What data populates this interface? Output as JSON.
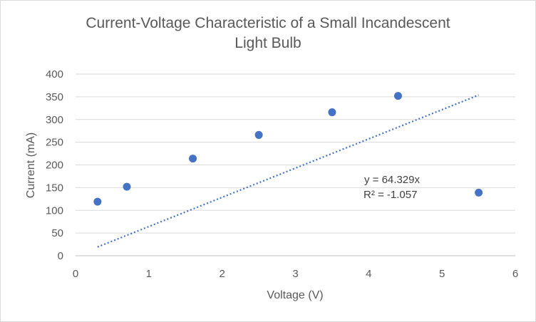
{
  "chart_data": {
    "type": "scatter",
    "title_line1": "Current-Voltage Characteristic of a Small Incandescent",
    "title_line2": "Light Bulb",
    "xlabel": "Voltage (V)",
    "ylabel": "Current (mA)",
    "xlim": [
      0,
      6
    ],
    "ylim": [
      0,
      400
    ],
    "x_ticks": [
      "0",
      "1",
      "2",
      "3",
      "4",
      "5",
      "6"
    ],
    "y_ticks": [
      "0",
      "50",
      "100",
      "150",
      "200",
      "250",
      "300",
      "350",
      "400"
    ],
    "grid": "horizontal",
    "series": [
      {
        "marker_color": "#4472c4",
        "points": [
          {
            "x": 0.3,
            "y": 119
          },
          {
            "x": 0.7,
            "y": 152
          },
          {
            "x": 1.6,
            "y": 214
          },
          {
            "x": 2.5,
            "y": 266
          },
          {
            "x": 3.5,
            "y": 316
          },
          {
            "x": 4.4,
            "y": 352
          },
          {
            "x": 5.5,
            "y": 139
          }
        ]
      }
    ],
    "trendline": {
      "type": "linear-through-origin",
      "slope": 64.329,
      "x_range": [
        0.3,
        5.5
      ],
      "color": "#4472c4",
      "style": "dotted",
      "equation": "y = 64.329x",
      "r_squared": "R² = -1.057"
    }
  }
}
